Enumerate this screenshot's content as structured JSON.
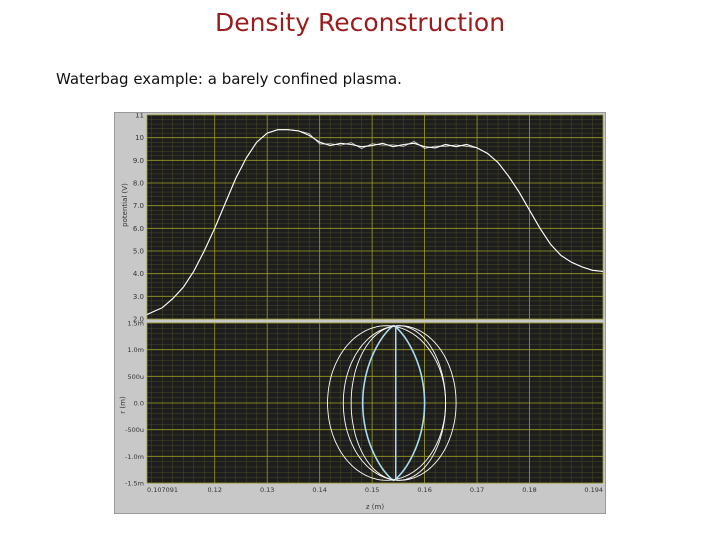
{
  "page": {
    "title": "Density Reconstruction",
    "subtitle": "Waterbag example: a barely confined plasma."
  },
  "colors": {
    "plot_bg": "#1d1d1d",
    "major_grid": "#9a9a22",
    "minor_grid": "#4a4a24",
    "frame": "#c8c8c8",
    "curve": "#ffffff",
    "orbit_highlight": "#a9dcf0"
  },
  "chart_data": [
    {
      "type": "line",
      "title": "",
      "xlabel": "",
      "ylabel": "potential (V)",
      "xlim": [
        0.107091,
        0.194
      ],
      "ylim": [
        2.0,
        11.0
      ],
      "y_ticks": [
        "2.0",
        "3.0",
        "4.0",
        "5.0",
        "6.0",
        "7.0",
        "8.0",
        "9.0",
        "10",
        "11"
      ],
      "grid": true,
      "series": [
        {
          "x": [
            0.107091,
            0.11,
            0.112,
            0.114,
            0.116,
            0.118,
            0.12,
            0.122,
            0.124,
            0.126,
            0.128,
            0.13,
            0.132,
            0.134,
            0.136,
            0.138,
            0.14,
            0.142,
            0.144,
            0.146,
            0.148,
            0.15,
            0.152,
            0.154,
            0.156,
            0.158,
            0.16,
            0.162,
            0.164,
            0.166,
            0.168,
            0.17,
            0.172,
            0.174,
            0.176,
            0.178,
            0.18,
            0.182,
            0.184,
            0.186,
            0.188,
            0.19,
            0.192,
            0.194
          ],
          "y": [
            2.2,
            2.5,
            2.9,
            3.4,
            4.1,
            5.0,
            6.0,
            7.1,
            8.2,
            9.1,
            9.8,
            10.2,
            10.35,
            10.35,
            10.3,
            10.1,
            9.8,
            9.65,
            9.75,
            9.7,
            9.6,
            9.65,
            9.75,
            9.6,
            9.7,
            9.75,
            9.6,
            9.55,
            9.7,
            9.6,
            9.7,
            9.55,
            9.3,
            8.9,
            8.3,
            7.6,
            6.8,
            6.0,
            5.3,
            4.8,
            4.5,
            4.3,
            4.15,
            4.1
          ]
        }
      ]
    },
    {
      "type": "scatter",
      "title": "",
      "xlabel": "z (m)",
      "ylabel": "r (m)",
      "xlim": [
        0.107091,
        0.194
      ],
      "ylim": [
        -0.0015,
        0.0015
      ],
      "x_ticks": [
        "0.107091",
        "0.12",
        "0.13",
        "0.14",
        "0.15",
        "0.16",
        "0.17",
        "0.18",
        "0.194"
      ],
      "y_ticks": [
        "-1.5m",
        "-1.0m",
        "-500u",
        "0.0",
        "500u",
        "1.0m",
        "1.5m"
      ],
      "grid": true,
      "orbits": [
        {
          "z_min": 0.1482,
          "z_max": 0.16
        },
        {
          "z_min": 0.146,
          "z_max": 0.164
        },
        {
          "z_min": 0.1445,
          "z_max": 0.166
        },
        {
          "z_min": 0.1415,
          "z_max": 0.164
        }
      ]
    }
  ]
}
